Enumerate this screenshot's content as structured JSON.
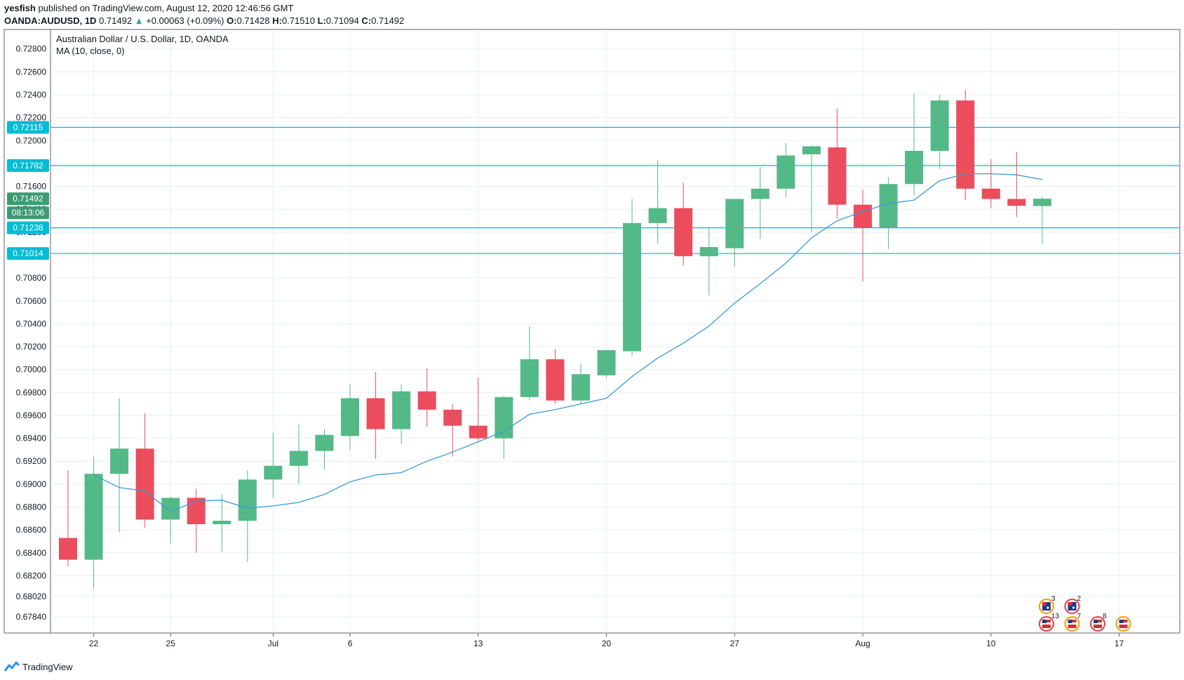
{
  "header": {
    "publisher": "yesfish",
    "published_text": "published on TradingView.com, August 12, 2020 12:46:56 GMT",
    "symbol": "OANDA:AUDUSD, 1D",
    "last": "0.71492",
    "change": "+0.00063 (+0.09%)",
    "o_label": "O:",
    "o_value": "0.71428",
    "h_label": "H:",
    "h_value": "0.71510",
    "l_label": "L:",
    "l_value": "0.71094",
    "c_label": "C:",
    "c_value": "0.71492"
  },
  "footer": {
    "brand": "TradingView"
  },
  "colors": {
    "up": "#53b987",
    "down": "#eb4d5c",
    "ma": "#3a9ad9",
    "hline": "#00bcd4",
    "grid": "#e9eff3"
  },
  "chart_data": {
    "type": "candlestick",
    "title": "Australian Dollar / U.S. Dollar, 1D, OANDA",
    "indicator_label": "MA (10, close, 0)",
    "ylim": [
      0.677,
      0.7297
    ],
    "yticks": [
      0.6784,
      0.6802,
      0.682,
      0.684,
      0.686,
      0.688,
      0.69,
      0.692,
      0.694,
      0.696,
      0.698,
      0.7,
      0.702,
      0.704,
      0.706,
      0.708,
      0.71,
      0.712,
      0.714,
      0.716,
      0.718,
      0.72,
      0.722,
      0.724,
      0.726,
      0.728
    ],
    "ytick_labels": [
      "0.67840",
      "0.68020",
      "0.68200",
      "0.68400",
      "0.68600",
      "0.68800",
      "0.69000",
      "0.69200",
      "0.69400",
      "0.69600",
      "0.69800",
      "0.70000",
      "0.70200",
      "0.70400",
      "0.70600",
      "0.70800",
      "0.71000",
      "0.71200",
      "0.71400",
      "0.71600",
      "0.71800",
      "0.72000",
      "0.72200",
      "0.72400",
      "0.72600",
      "0.72800"
    ],
    "xticks": [
      {
        "label": "22",
        "index": 1
      },
      {
        "label": "25",
        "index": 4
      },
      {
        "label": "Jul",
        "index": 8
      },
      {
        "label": "6",
        "index": 11
      },
      {
        "label": "13",
        "index": 16
      },
      {
        "label": "20",
        "index": 21
      },
      {
        "label": "27",
        "index": 26
      },
      {
        "label": "Aug",
        "index": 31
      },
      {
        "label": "10",
        "index": 36
      },
      {
        "label": "17",
        "index": 41
      }
    ],
    "candles": [
      {
        "o": 0.6853,
        "h": 0.6912,
        "l": 0.6828,
        "c": 0.6834
      },
      {
        "o": 0.6834,
        "h": 0.6924,
        "l": 0.6809,
        "c": 0.6909
      },
      {
        "o": 0.6909,
        "h": 0.6975,
        "l": 0.6858,
        "c": 0.6931
      },
      {
        "o": 0.6931,
        "h": 0.6962,
        "l": 0.6862,
        "c": 0.6869
      },
      {
        "o": 0.6869,
        "h": 0.6889,
        "l": 0.6848,
        "c": 0.6888
      },
      {
        "o": 0.6888,
        "h": 0.6896,
        "l": 0.684,
        "c": 0.6865
      },
      {
        "o": 0.6865,
        "h": 0.6891,
        "l": 0.6841,
        "c": 0.6868
      },
      {
        "o": 0.6868,
        "h": 0.6912,
        "l": 0.6832,
        "c": 0.6904
      },
      {
        "o": 0.6904,
        "h": 0.6945,
        "l": 0.6888,
        "c": 0.6916
      },
      {
        "o": 0.6916,
        "h": 0.6952,
        "l": 0.69,
        "c": 0.6929
      },
      {
        "o": 0.6929,
        "h": 0.6948,
        "l": 0.6913,
        "c": 0.6943
      },
      {
        "o": 0.6942,
        "h": 0.6987,
        "l": 0.693,
        "c": 0.6975
      },
      {
        "o": 0.6975,
        "h": 0.6998,
        "l": 0.6922,
        "c": 0.6948
      },
      {
        "o": 0.6948,
        "h": 0.6987,
        "l": 0.6935,
        "c": 0.6981
      },
      {
        "o": 0.6981,
        "h": 0.7001,
        "l": 0.695,
        "c": 0.6965
      },
      {
        "o": 0.6965,
        "h": 0.697,
        "l": 0.6924,
        "c": 0.6951
      },
      {
        "o": 0.6951,
        "h": 0.6993,
        "l": 0.6938,
        "c": 0.694
      },
      {
        "o": 0.694,
        "h": 0.6977,
        "l": 0.6922,
        "c": 0.6976
      },
      {
        "o": 0.6976,
        "h": 0.7038,
        "l": 0.6973,
        "c": 0.7009
      },
      {
        "o": 0.7009,
        "h": 0.7018,
        "l": 0.697,
        "c": 0.6973
      },
      {
        "o": 0.6973,
        "h": 0.7005,
        "l": 0.697,
        "c": 0.6996
      },
      {
        "o": 0.6995,
        "h": 0.7017,
        "l": 0.6993,
        "c": 0.7017
      },
      {
        "o": 0.7016,
        "h": 0.7149,
        "l": 0.7012,
        "c": 0.7128
      },
      {
        "o": 0.7128,
        "h": 0.7183,
        "l": 0.711,
        "c": 0.7141
      },
      {
        "o": 0.7141,
        "h": 0.7163,
        "l": 0.7091,
        "c": 0.7099
      },
      {
        "o": 0.7099,
        "h": 0.7124,
        "l": 0.7065,
        "c": 0.7107
      },
      {
        "o": 0.7106,
        "h": 0.7148,
        "l": 0.709,
        "c": 0.7149
      },
      {
        "o": 0.7149,
        "h": 0.7177,
        "l": 0.7114,
        "c": 0.7158
      },
      {
        "o": 0.7158,
        "h": 0.7198,
        "l": 0.715,
        "c": 0.7187
      },
      {
        "o": 0.7188,
        "h": 0.7196,
        "l": 0.712,
        "c": 0.7195
      },
      {
        "o": 0.7194,
        "h": 0.7228,
        "l": 0.7132,
        "c": 0.7144
      },
      {
        "o": 0.7144,
        "h": 0.7157,
        "l": 0.7077,
        "c": 0.7124
      },
      {
        "o": 0.7124,
        "h": 0.7168,
        "l": 0.7105,
        "c": 0.7162
      },
      {
        "o": 0.7162,
        "h": 0.7241,
        "l": 0.7152,
        "c": 0.7191
      },
      {
        "o": 0.7191,
        "h": 0.724,
        "l": 0.7175,
        "c": 0.7235
      },
      {
        "o": 0.7235,
        "h": 0.7244,
        "l": 0.7148,
        "c": 0.7158
      },
      {
        "o": 0.7158,
        "h": 0.7184,
        "l": 0.7141,
        "c": 0.7149
      },
      {
        "o": 0.7149,
        "h": 0.719,
        "l": 0.7133,
        "c": 0.7143
      },
      {
        "o": 0.71428,
        "h": 0.7151,
        "l": 0.71094,
        "c": 0.71492
      }
    ],
    "ma": [
      null,
      0.6908,
      0.6897,
      0.6894,
      0.6876,
      0.6885,
      0.6886,
      0.6879,
      0.6881,
      0.6884,
      0.6891,
      0.6902,
      0.6908,
      0.691,
      0.692,
      0.6928,
      0.6937,
      0.6946,
      0.6961,
      0.6965,
      0.697,
      0.6975,
      0.6994,
      0.701,
      0.7023,
      0.7038,
      0.7058,
      0.7075,
      0.7093,
      0.7115,
      0.713,
      0.7138,
      0.7145,
      0.7148,
      0.7165,
      0.7171,
      0.7171,
      0.717,
      0.7166
    ],
    "horizontal_levels": [
      {
        "value": 0.72115,
        "label": "0.72115"
      },
      {
        "value": 0.71782,
        "label": "0.71782"
      },
      {
        "value": 0.71238,
        "label": "0.71238"
      },
      {
        "value": 0.71014,
        "label": "0.71014"
      }
    ],
    "price_tag": {
      "value": 0.71492,
      "label": "0.71492"
    },
    "countdown_tag": {
      "label": "08:13:06"
    },
    "events": [
      {
        "index": 38,
        "row": 0,
        "kind": "au-orange",
        "count": "3"
      },
      {
        "index": 39,
        "row": 0,
        "kind": "au-red",
        "count": "2"
      },
      {
        "index": 38,
        "row": 1,
        "kind": "us-red",
        "count": "13"
      },
      {
        "index": 39,
        "row": 1,
        "kind": "us-orange",
        "count": "7"
      },
      {
        "index": 40,
        "row": 1,
        "kind": "us-red",
        "count": "8"
      },
      {
        "index": 41,
        "row": 1,
        "kind": "us-orange",
        "count": ""
      }
    ]
  }
}
